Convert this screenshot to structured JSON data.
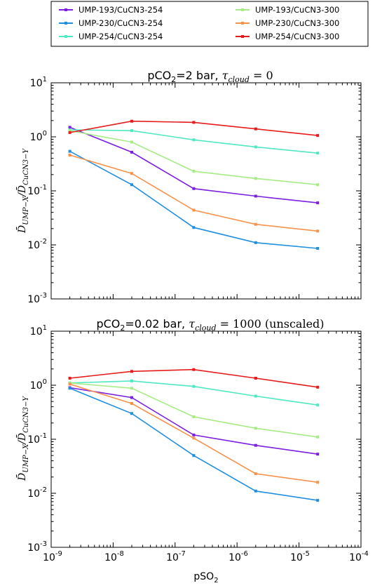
{
  "legend": {
    "placement": "top",
    "entries": [
      {
        "label": "UMP-193/CuCN3-254",
        "color": "#7b1fe0"
      },
      {
        "label": "UMP-230/CuCN3-254",
        "color": "#1f8fe0"
      },
      {
        "label": "UMP-254/CuCN3-254",
        "color": "#4fe8c2"
      },
      {
        "label": "UMP-193/CuCN3-300",
        "color": "#a6ec84"
      },
      {
        "label": "UMP-230/CuCN3-300",
        "color": "#f7924c"
      },
      {
        "label": "UMP-254/CuCN3-300",
        "color": "#e61c1c"
      }
    ]
  },
  "chart_data": [
    {
      "type": "line",
      "title_main": "pCO",
      "title_sub": "2",
      "title_mid": "=2 bar, ",
      "title_tau": "τ",
      "title_tau_sub": "cloud",
      "title_rest": " = 0",
      "ylabel_main": "D̄",
      "ylabel_sub1": "UMP−X",
      "ylabel_slash": "/D̄",
      "ylabel_sub2": "CuCN3−Y",
      "xscale": "log",
      "yscale": "log",
      "xlim": [
        1e-09,
        0.0001
      ],
      "ylim": [
        0.001,
        10
      ],
      "x": [
        2e-09,
        2e-08,
        2e-07,
        2e-06,
        2e-05
      ],
      "ytick_labels": [
        {
          "base": "10",
          "exp": "-3"
        },
        {
          "base": "10",
          "exp": "-2"
        },
        {
          "base": "10",
          "exp": "-1"
        },
        {
          "base": "10",
          "exp": "0"
        },
        {
          "base": "10",
          "exp": "1"
        }
      ],
      "series": [
        {
          "name": "UMP-193/CuCN3-254",
          "color": "#7b1fe0",
          "values": [
            1.5,
            0.52,
            0.11,
            0.08,
            0.06
          ]
        },
        {
          "name": "UMP-230/CuCN3-254",
          "color": "#1f8fe0",
          "values": [
            0.54,
            0.13,
            0.021,
            0.011,
            0.0086
          ]
        },
        {
          "name": "UMP-254/CuCN3-254",
          "color": "#4fe8c2",
          "values": [
            1.35,
            1.3,
            0.88,
            0.65,
            0.5
          ]
        },
        {
          "name": "UMP-193/CuCN3-300",
          "color": "#a6ec84",
          "values": [
            1.3,
            0.8,
            0.23,
            0.17,
            0.13
          ]
        },
        {
          "name": "UMP-230/CuCN3-300",
          "color": "#f7924c",
          "values": [
            0.46,
            0.21,
            0.044,
            0.024,
            0.018
          ]
        },
        {
          "name": "UMP-254/CuCN3-300",
          "color": "#e61c1c",
          "values": [
            1.2,
            1.95,
            1.85,
            1.4,
            1.06
          ]
        }
      ]
    },
    {
      "type": "line",
      "title_main": "pCO",
      "title_sub": "2",
      "title_mid": "=0.02 bar, ",
      "title_tau": "τ",
      "title_tau_sub": "cloud",
      "title_rest": " = 1000 (unscaled)",
      "ylabel_main": "D̄",
      "ylabel_sub1": "UMP−X",
      "ylabel_slash": "/D̄",
      "ylabel_sub2": "CuCN3−Y",
      "xlabel_main": "pSO",
      "xlabel_sub": "2",
      "xscale": "log",
      "yscale": "log",
      "xlim": [
        1e-09,
        0.0001
      ],
      "ylim": [
        0.001,
        10
      ],
      "x": [
        2e-09,
        2e-08,
        2e-07,
        2e-06,
        2e-05
      ],
      "ytick_labels": [
        {
          "base": "10",
          "exp": "-3"
        },
        {
          "base": "10",
          "exp": "-2"
        },
        {
          "base": "10",
          "exp": "-1"
        },
        {
          "base": "10",
          "exp": "0"
        },
        {
          "base": "10",
          "exp": "1"
        }
      ],
      "xtick_labels": [
        {
          "base": "10",
          "exp": "-9"
        },
        {
          "base": "10",
          "exp": "-8"
        },
        {
          "base": "10",
          "exp": "-7"
        },
        {
          "base": "10",
          "exp": "-6"
        },
        {
          "base": "10",
          "exp": "-5"
        },
        {
          "base": "10",
          "exp": "-4"
        }
      ],
      "series": [
        {
          "name": "UMP-193/CuCN3-254",
          "color": "#7b1fe0",
          "values": [
            0.9,
            0.59,
            0.12,
            0.077,
            0.053
          ]
        },
        {
          "name": "UMP-230/CuCN3-254",
          "color": "#1f8fe0",
          "values": [
            0.88,
            0.3,
            0.05,
            0.011,
            0.0074
          ]
        },
        {
          "name": "UMP-254/CuCN3-254",
          "color": "#4fe8c2",
          "values": [
            1.1,
            1.2,
            0.95,
            0.63,
            0.43
          ]
        },
        {
          "name": "UMP-193/CuCN3-300",
          "color": "#a6ec84",
          "values": [
            1.1,
            0.88,
            0.26,
            0.16,
            0.11
          ]
        },
        {
          "name": "UMP-230/CuCN3-300",
          "color": "#f7924c",
          "values": [
            1.05,
            0.46,
            0.105,
            0.023,
            0.016
          ]
        },
        {
          "name": "UMP-254/CuCN3-300",
          "color": "#e61c1c",
          "values": [
            1.35,
            1.8,
            1.95,
            1.35,
            0.92
          ]
        }
      ]
    }
  ]
}
